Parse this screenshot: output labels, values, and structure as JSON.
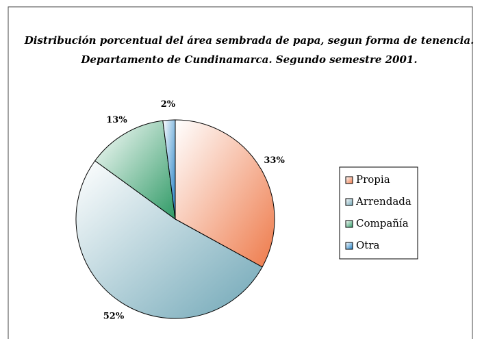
{
  "chart_data": {
    "type": "pie",
    "title": [
      "Distribución porcentual del área sembrada de papa, segun forma de tenencia.",
      "Departamento de Cundinamarca. Segundo semestre 2001."
    ],
    "categories": [
      "Propia",
      "Arrendada",
      "Compañía",
      "Otra"
    ],
    "values": [
      33,
      52,
      13,
      2
    ],
    "value_labels": [
      "33%",
      "52%",
      "13%",
      "2%"
    ],
    "colors": [
      "#ee7a4a",
      "#6fa6b6",
      "#2f9a66",
      "#1f7fc4"
    ],
    "legend": "right"
  }
}
